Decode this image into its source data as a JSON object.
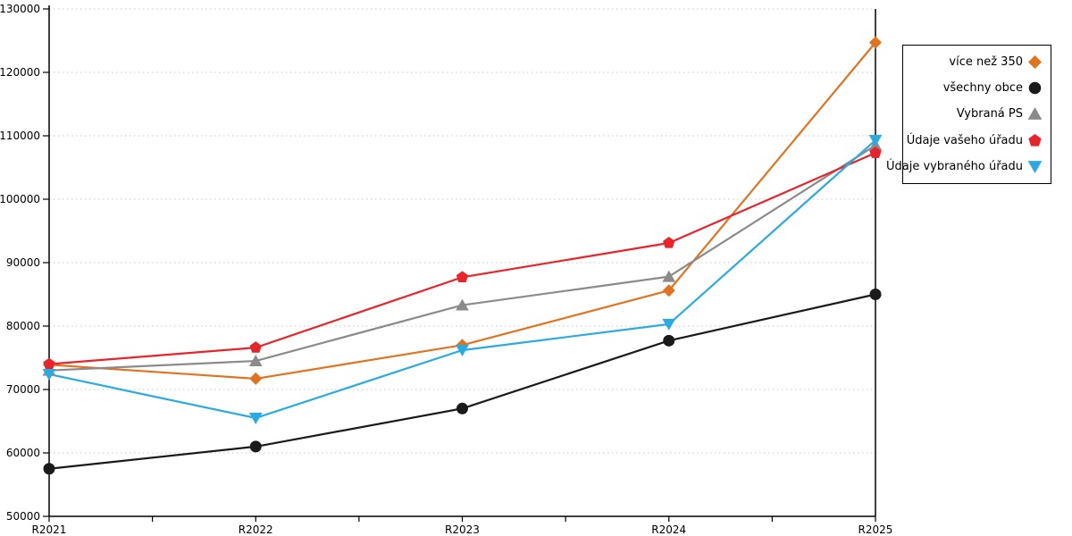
{
  "chart_data": {
    "type": "line",
    "title": "",
    "xlabel": "",
    "ylabel": "",
    "categories": [
      "R2021",
      "R2022",
      "R2023",
      "R2024",
      "R2025"
    ],
    "series": [
      {
        "name": "více než 350",
        "color": "#e1731e",
        "marker": "diamond",
        "values": [
          73900,
          71700,
          77000,
          85600,
          124700
        ]
      },
      {
        "name": "všechny obce",
        "color": "#1a1a1a",
        "marker": "circle",
        "values": [
          57500,
          61000,
          67000,
          77700,
          85000
        ]
      },
      {
        "name": "Vybraná PS",
        "color": "#8b8b8b",
        "marker": "triangle-up",
        "values": [
          73000,
          74500,
          83300,
          87800,
          108500
        ]
      },
      {
        "name": "Údaje vašeho úřadu",
        "color": "#e8232a",
        "marker": "pentagon",
        "values": [
          74000,
          76600,
          87700,
          93100,
          107300
        ]
      },
      {
        "name": "Údaje vybraného úřadu",
        "color": "#29abe2",
        "marker": "triangle-down",
        "values": [
          72400,
          65500,
          76200,
          80300,
          109300
        ]
      }
    ],
    "ylim": [
      50000,
      130000
    ],
    "ytick_step": 10000,
    "y_ticks": [
      50000,
      60000,
      70000,
      80000,
      90000,
      100000,
      110000,
      120000,
      130000
    ],
    "grid": "horizontal-dotted",
    "grid_color": "#c9c9c9",
    "axis_color": "#000000",
    "legend_position": "right"
  }
}
